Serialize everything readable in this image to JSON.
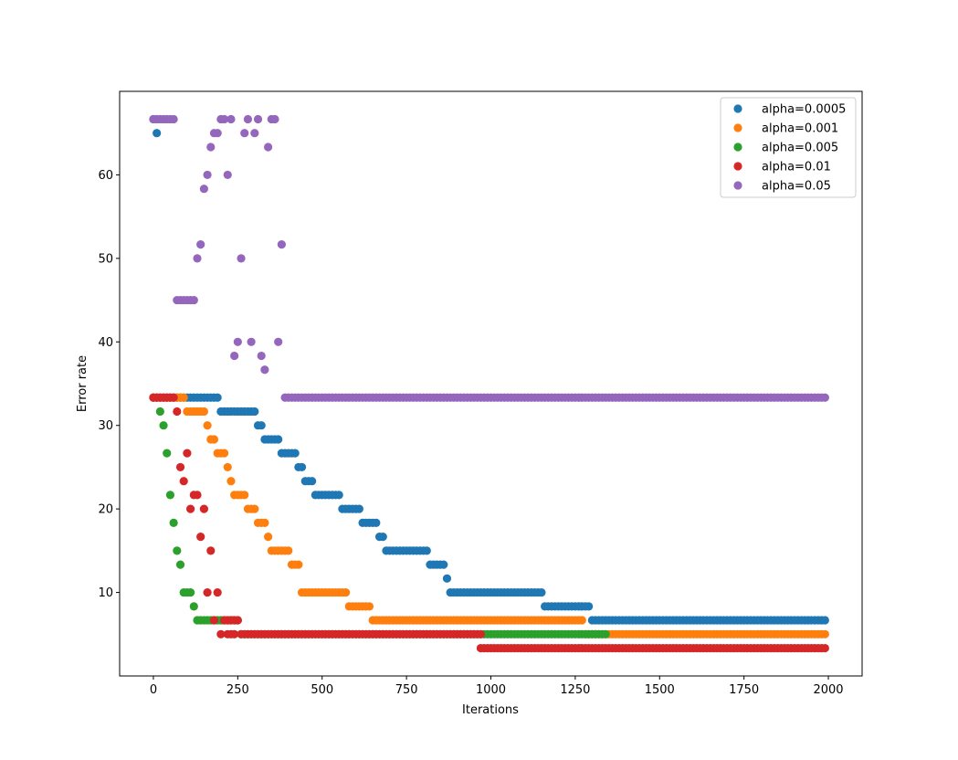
{
  "chart_data": {
    "type": "scatter",
    "title": "",
    "xlabel": "Iterations",
    "ylabel": "Error rate",
    "xlim": [
      -100,
      2100
    ],
    "ylim": [
      0,
      70
    ],
    "xticks": [
      0,
      250,
      500,
      750,
      1000,
      1250,
      1500,
      1750,
      2000
    ],
    "yticks": [
      10,
      20,
      30,
      40,
      50,
      60
    ],
    "grid": false,
    "legend_position": "top-right",
    "marker": "circle",
    "series": [
      {
        "name": "alpha=0.0005",
        "color": "#1f77b4",
        "segments": [
          {
            "x0": 0,
            "x1": 0,
            "y": 66.67
          },
          {
            "x0": 10,
            "x1": 10,
            "y": 65.0
          },
          {
            "x0": 20,
            "x1": 190,
            "y": 33.33
          },
          {
            "x0": 200,
            "x1": 300,
            "y": 31.67
          },
          {
            "x0": 310,
            "x1": 320,
            "y": 30.0
          },
          {
            "x0": 330,
            "x1": 370,
            "y": 28.33
          },
          {
            "x0": 380,
            "x1": 420,
            "y": 26.67
          },
          {
            "x0": 430,
            "x1": 440,
            "y": 25.0
          },
          {
            "x0": 450,
            "x1": 470,
            "y": 23.33
          },
          {
            "x0": 480,
            "x1": 550,
            "y": 21.67
          },
          {
            "x0": 560,
            "x1": 610,
            "y": 20.0
          },
          {
            "x0": 620,
            "x1": 660,
            "y": 18.33
          },
          {
            "x0": 670,
            "x1": 680,
            "y": 16.67
          },
          {
            "x0": 690,
            "x1": 810,
            "y": 15.0
          },
          {
            "x0": 820,
            "x1": 860,
            "y": 13.33
          },
          {
            "x0": 870,
            "x1": 870,
            "y": 11.67
          },
          {
            "x0": 880,
            "x1": 1150,
            "y": 10.0
          },
          {
            "x0": 1160,
            "x1": 1290,
            "y": 8.33
          },
          {
            "x0": 1300,
            "x1": 1990,
            "y": 6.67
          }
        ]
      },
      {
        "name": "alpha=0.001",
        "color": "#ff7f0e",
        "segments": [
          {
            "x0": 0,
            "x1": 90,
            "y": 33.33
          },
          {
            "x0": 100,
            "x1": 150,
            "y": 31.67
          },
          {
            "x0": 160,
            "x1": 160,
            "y": 30.0
          },
          {
            "x0": 170,
            "x1": 180,
            "y": 28.33
          },
          {
            "x0": 190,
            "x1": 210,
            "y": 26.67
          },
          {
            "x0": 220,
            "x1": 220,
            "y": 25.0
          },
          {
            "x0": 230,
            "x1": 230,
            "y": 23.33
          },
          {
            "x0": 240,
            "x1": 270,
            "y": 21.67
          },
          {
            "x0": 280,
            "x1": 300,
            "y": 20.0
          },
          {
            "x0": 310,
            "x1": 330,
            "y": 18.33
          },
          {
            "x0": 340,
            "x1": 340,
            "y": 16.67
          },
          {
            "x0": 350,
            "x1": 400,
            "y": 15.0
          },
          {
            "x0": 410,
            "x1": 430,
            "y": 13.33
          },
          {
            "x0": 440,
            "x1": 570,
            "y": 10.0
          },
          {
            "x0": 580,
            "x1": 640,
            "y": 8.33
          },
          {
            "x0": 650,
            "x1": 1270,
            "y": 6.67
          },
          {
            "x0": 1280,
            "x1": 1990,
            "y": 5.0
          }
        ]
      },
      {
        "name": "alpha=0.005",
        "color": "#2ca02c",
        "segments": [
          {
            "x0": 0,
            "x1": 10,
            "y": 33.33
          },
          {
            "x0": 20,
            "x1": 20,
            "y": 31.67
          },
          {
            "x0": 30,
            "x1": 30,
            "y": 30.0
          },
          {
            "x0": 40,
            "x1": 40,
            "y": 26.67
          },
          {
            "x0": 50,
            "x1": 50,
            "y": 21.67
          },
          {
            "x0": 60,
            "x1": 60,
            "y": 18.33
          },
          {
            "x0": 70,
            "x1": 70,
            "y": 15.0
          },
          {
            "x0": 80,
            "x1": 80,
            "y": 13.33
          },
          {
            "x0": 90,
            "x1": 110,
            "y": 10.0
          },
          {
            "x0": 120,
            "x1": 120,
            "y": 8.33
          },
          {
            "x0": 130,
            "x1": 250,
            "y": 6.67
          },
          {
            "x0": 260,
            "x1": 1340,
            "y": 5.0
          }
        ]
      },
      {
        "name": "alpha=0.01",
        "color": "#d62728",
        "segments": [
          {
            "x0": 0,
            "x1": 60,
            "y": 33.33
          },
          {
            "x0": 70,
            "x1": 70,
            "y": 31.67
          },
          {
            "x0": 100,
            "x1": 100,
            "y": 26.67
          },
          {
            "x0": 80,
            "x1": 80,
            "y": 25.0
          },
          {
            "x0": 90,
            "x1": 90,
            "y": 23.33
          },
          {
            "x0": 120,
            "x1": 130,
            "y": 21.67
          },
          {
            "x0": 110,
            "x1": 110,
            "y": 20.0
          },
          {
            "x0": 150,
            "x1": 150,
            "y": 20.0
          },
          {
            "x0": 140,
            "x1": 140,
            "y": 16.67
          },
          {
            "x0": 170,
            "x1": 170,
            "y": 15.0
          },
          {
            "x0": 160,
            "x1": 160,
            "y": 10.0
          },
          {
            "x0": 190,
            "x1": 190,
            "y": 10.0
          },
          {
            "x0": 180,
            "x1": 180,
            "y": 6.67
          },
          {
            "x0": 210,
            "x1": 250,
            "y": 6.67
          },
          {
            "x0": 200,
            "x1": 200,
            "y": 5.0
          },
          {
            "x0": 220,
            "x1": 240,
            "y": 5.0
          },
          {
            "x0": 260,
            "x1": 970,
            "y": 5.0
          },
          {
            "x0": 970,
            "x1": 1990,
            "y": 3.33
          }
        ]
      },
      {
        "name": "alpha=0.05",
        "color": "#9467bd",
        "segments": [
          {
            "x0": 0,
            "x1": 60,
            "y": 66.67
          },
          {
            "x0": 70,
            "x1": 120,
            "y": 45.0
          },
          {
            "x0": 130,
            "x1": 130,
            "y": 50.0
          },
          {
            "x0": 140,
            "x1": 140,
            "y": 51.67
          },
          {
            "x0": 150,
            "x1": 150,
            "y": 58.33
          },
          {
            "x0": 160,
            "x1": 160,
            "y": 60.0
          },
          {
            "x0": 170,
            "x1": 170,
            "y": 63.33
          },
          {
            "x0": 180,
            "x1": 190,
            "y": 65.0
          },
          {
            "x0": 200,
            "x1": 210,
            "y": 66.67
          },
          {
            "x0": 220,
            "x1": 220,
            "y": 60.0
          },
          {
            "x0": 230,
            "x1": 230,
            "y": 66.67
          },
          {
            "x0": 240,
            "x1": 240,
            "y": 38.33
          },
          {
            "x0": 250,
            "x1": 250,
            "y": 40.0
          },
          {
            "x0": 260,
            "x1": 260,
            "y": 50.0
          },
          {
            "x0": 270,
            "x1": 270,
            "y": 65.0
          },
          {
            "x0": 280,
            "x1": 280,
            "y": 66.67
          },
          {
            "x0": 290,
            "x1": 290,
            "y": 40.0
          },
          {
            "x0": 300,
            "x1": 300,
            "y": 65.0
          },
          {
            "x0": 310,
            "x1": 310,
            "y": 66.67
          },
          {
            "x0": 320,
            "x1": 320,
            "y": 38.33
          },
          {
            "x0": 330,
            "x1": 330,
            "y": 36.67
          },
          {
            "x0": 340,
            "x1": 340,
            "y": 63.33
          },
          {
            "x0": 350,
            "x1": 360,
            "y": 66.67
          },
          {
            "x0": 370,
            "x1": 370,
            "y": 40.0
          },
          {
            "x0": 380,
            "x1": 380,
            "y": 51.67
          },
          {
            "x0": 390,
            "x1": 1990,
            "y": 33.33
          }
        ]
      }
    ]
  }
}
